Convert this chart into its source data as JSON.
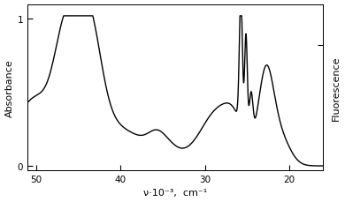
{
  "x_min": 16,
  "x_max": 51,
  "xlabel": "ν·10⁻³,  cm⁻¹",
  "ylabel_left": "Absorbance",
  "ylabel_right": "Fluorescence",
  "xticks": [
    50,
    40,
    30,
    20
  ],
  "yticks_left": [
    0,
    1
  ],
  "background_color": "#ffffff",
  "line_color": "#000000",
  "line_width": 1.0
}
